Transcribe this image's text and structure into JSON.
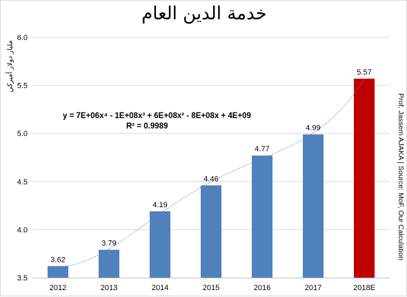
{
  "chart_data": {
    "type": "bar",
    "title": "خدمة الدين العام",
    "ylabel": "مليار دولار أميركي",
    "categories": [
      "2012",
      "2013",
      "2014",
      "2015",
      "2016",
      "2017",
      "2018E"
    ],
    "series": [
      {
        "values": [
          3.62,
          3.79,
          4.19,
          4.46,
          4.77,
          4.99,
          5.57
        ]
      }
    ],
    "data_labels": [
      "3.62",
      "3.79",
      "4.19",
      "4.46",
      "4.77",
      "4.99",
      "5.57"
    ],
    "bar_colors": [
      "#4f81bd",
      "#4f81bd",
      "#4f81bd",
      "#4f81bd",
      "#4f81bd",
      "#4f81bd",
      "#c00000"
    ],
    "ylim": [
      3.5,
      6.0
    ],
    "yticks": [
      "3.5",
      "4.0",
      "4.5",
      "5.0",
      "5.5",
      "6.0"
    ],
    "grid": true,
    "trendline": {
      "type": "polynomial",
      "color": "#4f81bd",
      "equation": "y = 7E+06x⁴ - 1E+08x³ + 6E+08x² - 8E+08x + 4E+09",
      "r_squared": "R² = 0.9989"
    },
    "side_note": "Prof. Jassem AJAKA | Source: MoF, Our Calculation"
  }
}
